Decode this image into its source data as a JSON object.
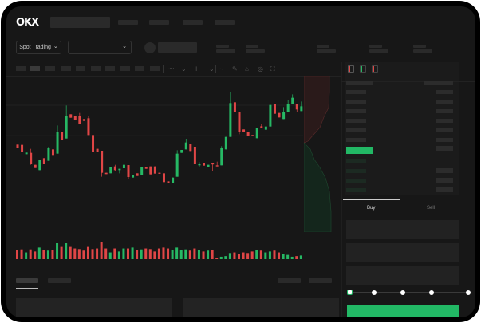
{
  "header": {
    "logo": "OKX"
  },
  "toolbar": {
    "market_selector": "Spot Trading",
    "chevron": "⌄"
  },
  "order_form": {
    "tabs": [
      "Buy",
      "Sell"
    ],
    "active_tab": "Buy",
    "slider_percent": 0,
    "slider_marks": [
      0,
      25,
      50,
      75,
      100
    ]
  },
  "colors": {
    "up": "#26b864",
    "down": "#e04646",
    "background": "#171717",
    "accent": "#22b865"
  },
  "candles": [
    [
      176,
      165,
      176,
      165
    ],
    [
      175,
      147,
      175,
      147
    ],
    [
      140,
      146,
      146,
      140
    ],
    [
      145,
      102,
      160,
      100
    ],
    [
      100,
      88,
      100,
      88
    ],
    [
      80,
      120,
      120,
      80
    ],
    [
      125,
      102,
      125,
      102
    ],
    [
      115,
      162,
      168,
      115
    ],
    [
      158,
      137,
      158,
      137
    ],
    [
      142,
      225,
      248,
      142
    ],
    [
      222,
      195,
      222,
      195
    ],
    [
      199,
      285,
      323,
      199
    ],
    [
      290,
      277,
      290,
      277
    ],
    [
      282,
      270,
      282,
      270
    ],
    [
      282,
      252,
      295,
      252
    ],
    [
      272,
      265,
      272,
      265
    ],
    [
      275,
      212,
      282,
      212
    ],
    [
      212,
      150,
      212,
      150
    ],
    [
      160,
      150,
      160,
      150
    ],
    [
      153,
      70,
      153,
      55
    ],
    [
      70,
      65,
      70,
      65
    ],
    [
      68,
      92,
      92,
      68
    ],
    [
      94,
      80,
      100,
      75
    ],
    [
      80,
      85,
      85,
      68
    ],
    [
      87,
      100,
      100,
      87
    ],
    [
      99,
      54,
      99,
      45
    ],
    [
      52,
      63,
      63,
      52
    ],
    [
      68,
      58,
      68,
      58
    ],
    [
      62,
      90,
      90,
      62
    ],
    [
      91,
      85,
      91,
      85
    ],
    [
      94,
      64,
      94,
      64
    ],
    [
      94,
      67,
      94,
      67
    ],
    [
      70,
      67,
      70,
      67
    ],
    [
      68,
      35,
      68,
      35
    ],
    [
      38,
      33,
      38,
      33
    ],
    [
      32,
      52,
      52,
      32
    ],
    [
      55,
      142,
      155,
      55
    ],
    [
      145,
      156,
      156,
      145
    ],
    [
      158,
      184,
      198,
      158
    ],
    [
      180,
      152,
      180,
      152
    ],
    [
      168,
      102,
      168,
      95
    ],
    [
      98,
      102,
      110,
      90
    ],
    [
      108,
      97,
      108,
      97
    ],
    [
      92,
      100,
      100,
      92
    ],
    [
      105,
      103,
      105,
      75
    ],
    [
      98,
      94,
      112,
      94
    ],
    [
      98,
      162,
      170,
      98
    ],
    [
      158,
      205,
      205,
      158
    ],
    [
      205,
      332,
      375,
      205
    ],
    [
      335,
      298,
      343,
      298
    ],
    [
      298,
      225,
      298,
      215
    ],
    [
      233,
      225,
      233,
      225
    ],
    [
      225,
      208,
      225,
      208
    ],
    [
      212,
      208,
      212,
      208
    ],
    [
      200,
      240,
      240,
      200
    ],
    [
      245,
      238,
      252,
      238
    ],
    [
      232,
      244,
      260,
      232
    ],
    [
      244,
      325,
      325,
      244
    ],
    [
      330,
      292,
      330,
      292
    ],
    [
      295,
      278,
      295,
      278
    ],
    [
      272,
      298,
      317,
      272
    ],
    [
      300,
      328,
      345,
      300
    ],
    [
      328,
      352,
      365,
      328
    ],
    [
      330,
      308,
      330,
      300
    ],
    [
      302,
      320,
      338,
      302
    ]
  ],
  "volumes": [
    30,
    32,
    22,
    32,
    25,
    38,
    30,
    28,
    30,
    52,
    40,
    52,
    40,
    35,
    33,
    28,
    40,
    33,
    35,
    55,
    35,
    22,
    35,
    25,
    35,
    35,
    38,
    30,
    32,
    35,
    33,
    25,
    35,
    38,
    35,
    30,
    38,
    30,
    32,
    28,
    35,
    30,
    25,
    28,
    30,
    5,
    8,
    10,
    20,
    22,
    18,
    22,
    20,
    25,
    30,
    28,
    22,
    25,
    28,
    22,
    18,
    14,
    8,
    10,
    12
  ]
}
